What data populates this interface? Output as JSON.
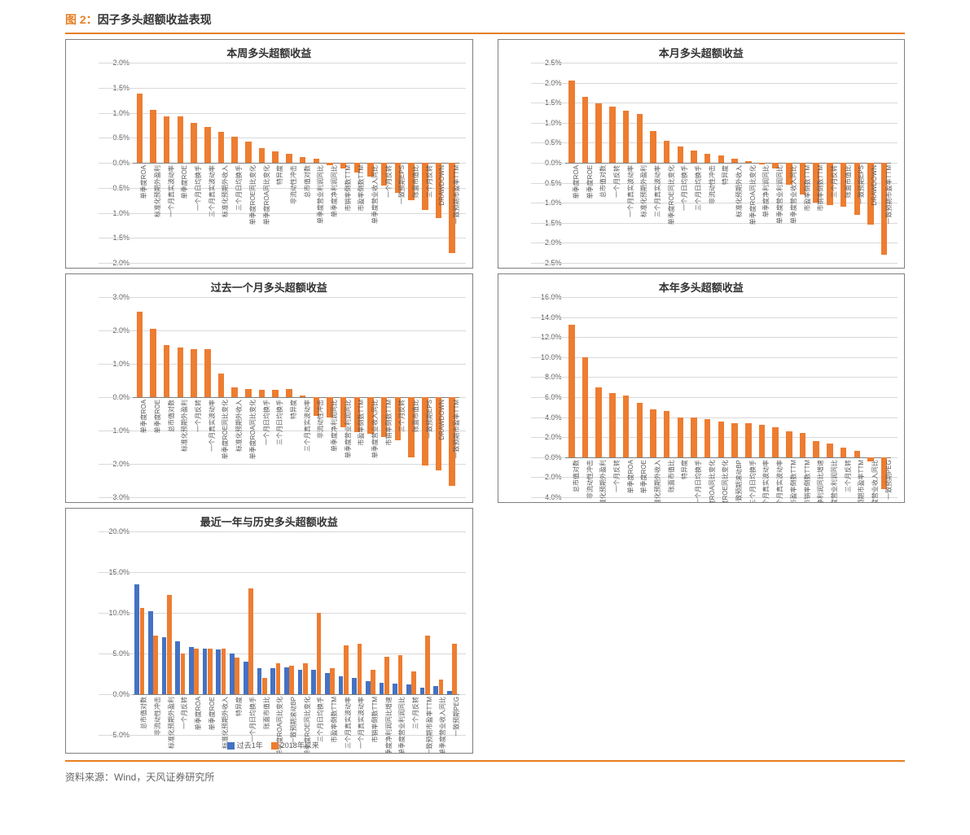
{
  "header": {
    "prefix": "图 2：",
    "title": "因子多头超额收益表现"
  },
  "source": "资料来源：Wind，天风证券研究所",
  "colors": {
    "accent": "#e67f22",
    "bar_orange": "#ed7d31",
    "bar_blue": "#4472c4",
    "panel_border": "#7f7f7f",
    "text": "#595959",
    "grid": "#d9d9d9",
    "axis": "#808080"
  },
  "panels": [
    {
      "id": "week",
      "title": "本周多头超额收益",
      "type": "bar",
      "ymin": -2.0,
      "ymax": 2.0,
      "ystep": 0.5,
      "yfmt": "pct1",
      "bar_color": "#ed7d31",
      "categories": [
        "单季度ROA",
        "标准化预期外盈利",
        "一个月真实波动率",
        "单季度ROE",
        "一个月日均换手",
        "三个月真实波动率",
        "标准化预期外收入",
        "三个月日均换手",
        "单季度ROE同比变化",
        "单季度ROA同比变化",
        "特异度",
        "非流动性冲击",
        "总市值对数",
        "单季度营业利润同比",
        "单季度净利润同比",
        "市销率倒数TTM",
        "市盈率倒数TTM",
        "单季度营业收入同比",
        "一个月反转",
        "一致预期EPS",
        "账面市值比",
        "三个月反转",
        "DRAWDOWN",
        "一致预期市盈率TTM"
      ],
      "values": [
        1.38,
        1.05,
        0.92,
        0.92,
        0.8,
        0.72,
        0.62,
        0.52,
        0.42,
        0.3,
        0.22,
        0.18,
        0.12,
        0.08,
        -0.05,
        -0.12,
        -0.2,
        -0.28,
        -0.45,
        -0.6,
        -0.75,
        -0.95,
        -1.1,
        -1.8
      ]
    },
    {
      "id": "month",
      "title": "本月多头超额收益",
      "type": "bar",
      "ymin": -2.5,
      "ymax": 2.5,
      "ystep": 0.5,
      "yfmt": "pct1",
      "bar_color": "#ed7d31",
      "categories": [
        "单季度ROA",
        "单季度ROE",
        "总市值对数",
        "一个月反转",
        "一个月真实波动率",
        "标准化预期外盈利",
        "三个月真实波动率",
        "单季度ROE同比变化",
        "一个月日均换手",
        "三个月日均换手",
        "非流动性冲击",
        "特异度",
        "标准化预期外收入",
        "单季度ROA同比变化",
        "单季度净利润同比",
        "单季度营业利润同比",
        "单季度营业收入同比",
        "市盈率倒数TTM",
        "市销率倒数TTM",
        "三个月反转",
        "账面市值比",
        "一致预期EPS",
        "DRAWDOWN",
        "一致预期市盈率TTM"
      ],
      "values": [
        2.05,
        1.65,
        1.48,
        1.4,
        1.3,
        1.22,
        0.8,
        0.55,
        0.4,
        0.3,
        0.22,
        0.18,
        0.1,
        0.05,
        -0.05,
        -0.15,
        -0.55,
        -0.8,
        -1.0,
        -1.05,
        -1.1,
        -1.3,
        -1.55,
        -2.3
      ]
    },
    {
      "id": "past1m",
      "title": "过去一个月多头超额收益",
      "type": "bar",
      "ymin": -3.0,
      "ymax": 3.0,
      "ystep": 1.0,
      "yfmt": "pct1",
      "bar_color": "#ed7d31",
      "categories": [
        "单季度ROA",
        "单季度ROE",
        "总市值对数",
        "标准化预期外盈利",
        "一个月反转",
        "一个月真实波动率",
        "单季度ROE同比变化",
        "标准化预期外收入",
        "单季度ROA同比变化",
        "一个月日均换手",
        "三个月日均换手",
        "特异度",
        "三个月真实波动率",
        "非流动性冲击",
        "单季度净利润同比",
        "单季度营业利润同比",
        "市盈率倒数TTM",
        "单季度营业收入同比",
        "市销率倒数TTM",
        "三个月反转",
        "账面市值比",
        "一致预期EPS",
        "DRAWDOWN",
        "一致预期市盈率TTM"
      ],
      "values": [
        2.55,
        2.05,
        1.55,
        1.5,
        1.45,
        1.45,
        0.7,
        0.3,
        0.25,
        0.22,
        0.22,
        0.25,
        0.05,
        -0.55,
        -0.6,
        -0.9,
        -1.05,
        -1.1,
        -1.2,
        -1.3,
        -1.8,
        -2.05,
        -2.2,
        -2.65
      ]
    },
    {
      "id": "ytd",
      "title": "本年多头超额收益",
      "type": "bar",
      "ymin": -4.0,
      "ymax": 16.0,
      "ystep": 2.0,
      "yfmt": "pct1",
      "bar_color": "#ed7d31",
      "categories": [
        "总市值对数",
        "非流动性冲击",
        "标准化预期外盈利",
        "一个月反转",
        "单季度ROA",
        "单季度ROE",
        "标准化预期外收入",
        "账面市值比",
        "特异度",
        "一个月日均换手",
        "单季度ROA同比变化",
        "单季度ROE同比变化",
        "一致预期滚动BP",
        "三个月日均换手",
        "三个月真实波动率",
        "一个月真实波动率",
        "市盈率倒数TTM",
        "市销率倒数TTM",
        "单季度净利润同比增速",
        "单季度营业利润同比",
        "三个月反转",
        "一致预期市盈率TTM",
        "单季度营业收入同比",
        "一致预期PEG"
      ],
      "values": [
        13.2,
        10.0,
        7.0,
        6.4,
        6.2,
        5.4,
        4.8,
        4.6,
        4.0,
        4.0,
        3.8,
        3.6,
        3.4,
        3.4,
        3.2,
        3.0,
        2.6,
        2.4,
        1.6,
        1.4,
        1.0,
        0.6,
        -0.4,
        -3.2
      ]
    },
    {
      "id": "compare",
      "title": "最近一年与历史多头超额收益",
      "type": "grouped-bar",
      "ymin": -5.0,
      "ymax": 20.0,
      "ystep": 5.0,
      "yfmt": "pct1",
      "series": [
        {
          "name": "过去1年",
          "color": "#4472c4"
        },
        {
          "name": "2018年以来",
          "color": "#ed7d31"
        }
      ],
      "categories": [
        "总市值对数",
        "非流动性冲击",
        "标准化预期外盈利",
        "一个月反转",
        "单季度ROA",
        "单季度ROE",
        "标准化预期外收入",
        "特异度",
        "一个月日均换手",
        "账面市值比",
        "单季度ROA同比变化",
        "一致预期滚动BP",
        "单季度ROE同比变化",
        "三个月日均换手",
        "市盈率倒数TTM",
        "三个月真实波动率",
        "一个月真实波动率",
        "市销率倒数TTM",
        "单季度净利润同比增速",
        "单季度营业利润同比",
        "三个月反转",
        "一致预期市盈率TTM",
        "单季度营业收入同比",
        "一致预期PEG"
      ],
      "values_a": [
        13.5,
        10.2,
        7.0,
        6.5,
        5.8,
        5.6,
        5.5,
        5.0,
        4.0,
        3.2,
        3.2,
        3.3,
        3.0,
        3.0,
        2.6,
        2.2,
        2.0,
        1.6,
        1.4,
        1.3,
        1.2,
        0.8,
        1.0,
        0.4
      ],
      "values_b": [
        10.6,
        7.2,
        12.2,
        5.0,
        5.6,
        5.6,
        5.6,
        4.5,
        13.0,
        2.0,
        3.8,
        3.5,
        3.8,
        10.0,
        3.2,
        6.0,
        6.2,
        3.0,
        4.6,
        4.8,
        2.8,
        7.2,
        1.8,
        6.2
      ]
    }
  ]
}
